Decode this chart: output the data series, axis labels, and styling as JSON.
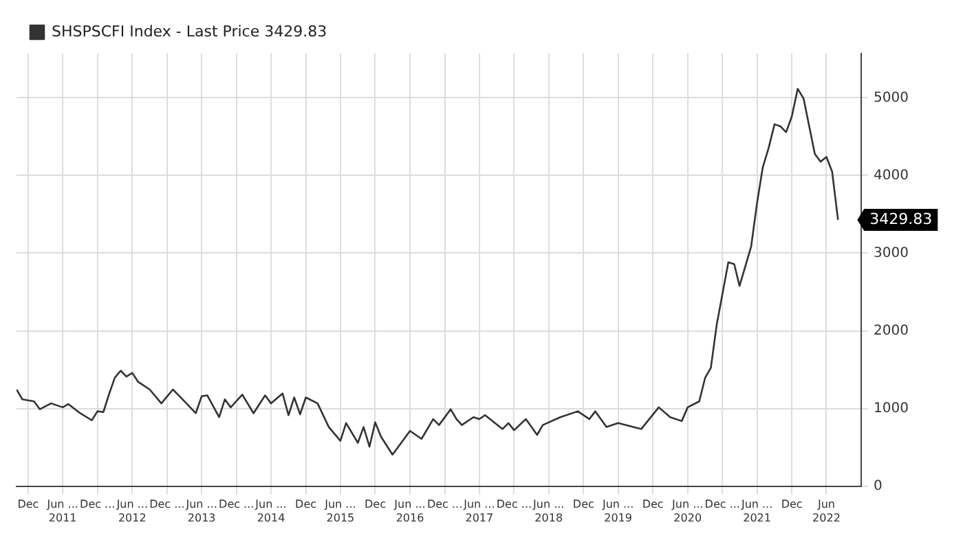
{
  "chart_data": {
    "type": "line",
    "legend": "top left",
    "grid": true,
    "marker": "none",
    "line_style": "solid",
    "x": [
      "2010-10",
      "2010-11",
      "2011-01",
      "2011-02",
      "2011-04",
      "2011-06",
      "2011-07",
      "2011-09",
      "2011-11",
      "2011-12",
      "2012-01",
      "2012-02",
      "2012-03",
      "2012-04",
      "2012-05",
      "2012-06",
      "2012-07",
      "2012-09",
      "2012-11",
      "2013-01",
      "2013-02",
      "2013-05",
      "2013-06",
      "2013-07",
      "2013-09",
      "2013-10",
      "2013-11",
      "2014-01",
      "2014-03",
      "2014-05",
      "2014-06",
      "2014-08",
      "2014-09",
      "2014-10",
      "2014-11",
      "2014-12",
      "2015-02",
      "2015-04",
      "2015-06",
      "2015-07",
      "2015-09",
      "2015-10",
      "2015-11",
      "2015-12",
      "2016-01",
      "2016-03",
      "2016-04",
      "2016-06",
      "2016-08",
      "2016-10",
      "2016-11",
      "2017-01",
      "2017-02",
      "2017-03",
      "2017-05",
      "2017-06",
      "2017-07",
      "2017-10",
      "2017-11",
      "2017-12",
      "2018-02",
      "2018-04",
      "2018-05",
      "2018-08",
      "2018-11",
      "2019-01",
      "2019-02",
      "2019-04",
      "2019-06",
      "2019-10",
      "2020-01",
      "2020-03",
      "2020-05",
      "2020-06",
      "2020-08",
      "2020-09",
      "2020-10",
      "2020-11",
      "2021-01",
      "2021-02",
      "2021-03",
      "2021-05",
      "2021-06",
      "2021-07",
      "2021-08",
      "2021-09",
      "2021-10",
      "2021-11",
      "2021-12",
      "2022-01",
      "2022-02",
      "2022-04",
      "2022-05",
      "2022-06",
      "2022-07",
      "2022-08"
    ],
    "series": [
      {
        "name": "SHSPSCFI Index - Last Price 3429.83",
        "color": "#333333",
        "values": [
          1244,
          1117,
          1091,
          990,
          1066,
          1015,
          1056,
          939,
          848,
          964,
          954,
          1193,
          1396,
          1487,
          1411,
          1457,
          1345,
          1244,
          1066,
          1244,
          1168,
          939,
          1157,
          1168,
          888,
          1117,
          1015,
          1178,
          939,
          1168,
          1066,
          1193,
          914,
          1142,
          924,
          1142,
          1066,
          761,
          584,
          812,
          558,
          761,
          508,
          822,
          635,
          406,
          508,
          711,
          609,
          863,
          787,
          990,
          863,
          787,
          888,
          863,
          914,
          736,
          812,
          721,
          863,
          660,
          787,
          888,
          964,
          863,
          964,
          761,
          812,
          736,
          1015,
          888,
          838,
          1015,
          1091,
          1396,
          1523,
          2081,
          2883,
          2858,
          2579,
          3086,
          3645,
          4102,
          4355,
          4660,
          4635,
          4558,
          4761,
          5117,
          4990,
          4279,
          4178,
          4239,
          4051,
          3429.83
        ]
      }
    ],
    "xlim": [
      "2010-10",
      "2022-12"
    ],
    "xticks": [
      {
        "value": "2010-12",
        "label": "Dec"
      },
      {
        "value": "2011-06",
        "label": "Jun ...\n2011"
      },
      {
        "value": "2011-12",
        "label": "Dec ..."
      },
      {
        "value": "2012-06",
        "label": "Jun ...\n2012"
      },
      {
        "value": "2012-12",
        "label": "Dec ..."
      },
      {
        "value": "2013-06",
        "label": "Jun ...\n2013"
      },
      {
        "value": "2013-12",
        "label": "Dec ..."
      },
      {
        "value": "2014-06",
        "label": "Jun ...\n2014"
      },
      {
        "value": "2014-12",
        "label": "Dec"
      },
      {
        "value": "2015-06",
        "label": "Jun ...\n2015"
      },
      {
        "value": "2015-12",
        "label": "Dec"
      },
      {
        "value": "2016-06",
        "label": "Jun ...\n2016"
      },
      {
        "value": "2016-12",
        "label": "Dec ..."
      },
      {
        "value": "2017-06",
        "label": "Jun ...\n2017"
      },
      {
        "value": "2017-12",
        "label": "Dec ..."
      },
      {
        "value": "2018-06",
        "label": "Jun ...\n2018"
      },
      {
        "value": "2018-12",
        "label": "Dec"
      },
      {
        "value": "2019-06",
        "label": "Jun ...\n2019"
      },
      {
        "value": "2019-12",
        "label": "Dec"
      },
      {
        "value": "2020-06",
        "label": "Jun ...\n2020"
      },
      {
        "value": "2020-12",
        "label": "Dec ..."
      },
      {
        "value": "2021-06",
        "label": "Jun ...\n2021"
      },
      {
        "value": "2021-12",
        "label": "Dec"
      },
      {
        "value": "2022-06",
        "label": "Jun\n2022"
      }
    ],
    "ylim": [
      0,
      5570
    ],
    "yticks": [
      0,
      1000,
      2000,
      3000,
      4000,
      5000
    ],
    "annotations": [
      {
        "text": "3429.83",
        "x": "2022-08",
        "y": 3429.83
      }
    ]
  }
}
